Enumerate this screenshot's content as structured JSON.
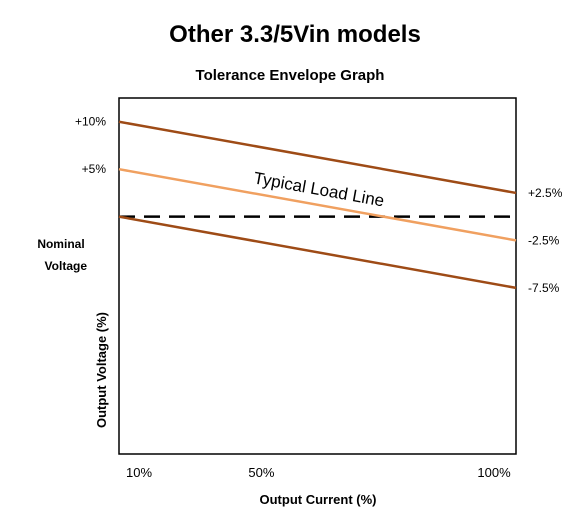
{
  "chart_data": {
    "type": "line",
    "title": "Other 3.3/5Vin models",
    "subtitle": "Tolerance Envelope Graph",
    "xlabel": "Output Current (%)",
    "ylabel": "Output Voltage (%)",
    "x_ticks": [
      {
        "value": 10,
        "label": "10%"
      },
      {
        "value": 50,
        "label": "50%"
      },
      {
        "value": 100,
        "label": "100%"
      }
    ],
    "xlim": [
      10,
      100
    ],
    "ylim": [
      -25,
      12.5
    ],
    "nominal_label": "Nominal Voltage",
    "series": [
      {
        "role": "upper-envelope",
        "color": "#9e4b16",
        "x": [
          10,
          100
        ],
        "y": [
          10,
          2.5
        ],
        "start_label": "+10%",
        "end_label": "+2.5%"
      },
      {
        "role": "typical-load-line",
        "name": "Typical Load Line",
        "color": "#f0a060",
        "x": [
          10,
          100
        ],
        "y": [
          5,
          -2.5
        ],
        "start_label": "+5%",
        "end_label": "-2.5%"
      },
      {
        "role": "lower-envelope",
        "color": "#9e4b16",
        "x": [
          10,
          100
        ],
        "y": [
          0,
          -7.5
        ],
        "start_label": "",
        "end_label": "-7.5%"
      }
    ],
    "reference_line": {
      "y": 0,
      "style": "dashed",
      "color": "#000000"
    },
    "grid": false,
    "legend": "none"
  }
}
